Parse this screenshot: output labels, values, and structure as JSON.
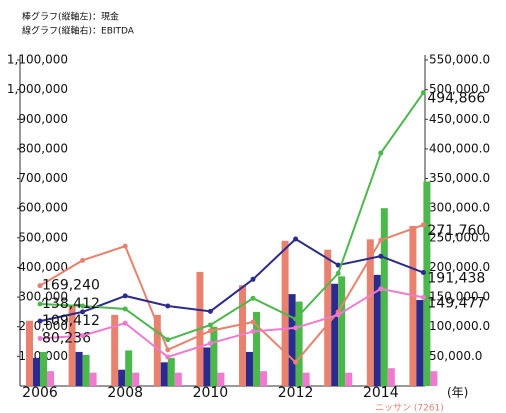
{
  "chart_data": {
    "type": "bar_line",
    "annotations": [
      "棒グラフ(縦軸左)：現金",
      "線グラフ(縦軸右)：EBITDA"
    ],
    "x_label": "(年)",
    "categories": [
      "2006",
      null,
      "2008",
      null,
      "2010",
      null,
      "2012",
      null,
      "2014",
      null
    ],
    "ylim": [
      0,
      1100000
    ],
    "yticks": [
      {
        "value": 100000,
        "label": "100,000"
      },
      {
        "value": 200000,
        "label": "200,000"
      },
      {
        "value": 300000,
        "label": "300,000"
      },
      {
        "value": 400000,
        "label": "400,000"
      },
      {
        "value": 500000,
        "label": "500,000"
      },
      {
        "value": 600000,
        "label": "600,000"
      },
      {
        "value": 700000,
        "label": "700,000"
      },
      {
        "value": 800000,
        "label": "800,000"
      },
      {
        "value": 900000,
        "label": "900,000"
      },
      {
        "value": 1000000,
        "label": "1,000,000"
      },
      {
        "value": 1100000,
        "label": "1,100,000"
      }
    ],
    "y2lim": [
      0,
      550000
    ],
    "y2ticks": [
      {
        "value": 50000,
        "label": "50,000.0"
      },
      {
        "value": 100000,
        "label": "100,000.0"
      },
      {
        "value": 150000,
        "label": "150,000.0"
      },
      {
        "value": 200000,
        "label": "200,000.0"
      },
      {
        "value": 250000,
        "label": "250,000.0"
      },
      {
        "value": 300000,
        "label": "300,000.0"
      },
      {
        "value": 350000,
        "label": "350,000.0"
      },
      {
        "value": 400000,
        "label": "400,000.0"
      },
      {
        "value": 450000,
        "label": "450,000.0"
      },
      {
        "value": 500000,
        "label": "500,000.0"
      },
      {
        "value": 550000,
        "label": "550,000.0"
      }
    ],
    "series": [
      {
        "name": "ニッサン (7261)",
        "kind": "bar",
        "color": "#e8826e",
        "values": [
          220000,
          270000,
          240000,
          240000,
          385000,
          340000,
          490000,
          460000,
          495000,
          540000
        ]
      },
      {
        "kind": "bar",
        "color": "#2b2a8f",
        "values": [
          95000,
          115000,
          55000,
          80000,
          130000,
          115000,
          310000,
          345000,
          375000,
          290000
        ]
      },
      {
        "kind": "bar",
        "color": "#4cb84c",
        "values": [
          115000,
          105000,
          120000,
          95000,
          200000,
          250000,
          285000,
          370000,
          600000,
          690000
        ]
      },
      {
        "kind": "bar",
        "color": "#f07ad0",
        "values": [
          50000,
          45000,
          45000,
          45000,
          45000,
          50000,
          45000,
          45000,
          60000,
          50000
        ]
      },
      {
        "kind": "line",
        "axis": "y2",
        "color": "#e8826e",
        "values": [
          169240,
          212000,
          236000,
          61000,
          93000,
          108000,
          40000,
          125000,
          246000,
          271760
        ],
        "value_labels": [
          "169,240",
          null,
          null,
          null,
          null,
          null,
          null,
          null,
          null,
          "271,760"
        ]
      },
      {
        "kind": "line",
        "axis": "y2",
        "color": "#2b2a8f",
        "values": [
          109412,
          125000,
          152000,
          135000,
          126000,
          180000,
          248000,
          204000,
          219000,
          191438
        ],
        "value_labels": [
          "109,412",
          null,
          null,
          null,
          null,
          null,
          null,
          null,
          null,
          "191,438"
        ]
      },
      {
        "kind": "line",
        "axis": "y2",
        "color": "#4cb84c",
        "values": [
          138412,
          135000,
          130000,
          78000,
          103000,
          148000,
          113000,
          190000,
          393000,
          494866
        ],
        "value_labels": [
          "138,412",
          null,
          null,
          null,
          null,
          null,
          null,
          null,
          null,
          "494,866"
        ]
      },
      {
        "kind": "line",
        "axis": "y2",
        "color": "#f07ad0",
        "values": [
          80236,
          85000,
          106000,
          49000,
          72000,
          92000,
          98000,
          120000,
          164000,
          149477
        ],
        "value_labels": [
          "80,236",
          null,
          null,
          null,
          null,
          null,
          null,
          null,
          null,
          "149,477"
        ]
      }
    ]
  }
}
